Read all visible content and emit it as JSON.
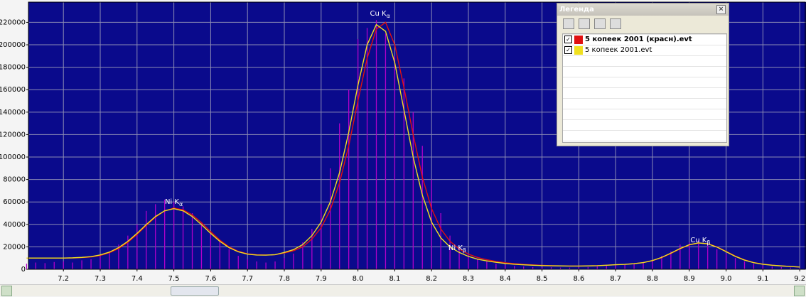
{
  "chart_data": {
    "type": "line",
    "legend_title": "Легенда",
    "xlim": [
      7.105,
      9.217
    ],
    "ylim": [
      0,
      238000
    ],
    "grid": true,
    "background": "#0a0a8c",
    "xticks": [
      7.2,
      7.3,
      7.4,
      7.5,
      7.6,
      7.7,
      7.8,
      7.9,
      {
        "value": 8,
        "label": "8.0"
      },
      8.1,
      8.2,
      8.3,
      8.4,
      8.5,
      8.6,
      8.7,
      8.8,
      8.9,
      {
        "value": 9,
        "label": "9.0"
      },
      9.1,
      9.2
    ],
    "yticks": [
      0,
      20000,
      40000,
      60000,
      80000,
      100000,
      120000,
      140000,
      160000,
      180000,
      200000,
      220000
    ],
    "x": [
      7.1,
      7.125,
      7.15,
      7.175,
      7.2,
      7.225,
      7.25,
      7.275,
      7.3,
      7.325,
      7.35,
      7.375,
      7.4,
      7.425,
      7.45,
      7.475,
      7.5,
      7.525,
      7.55,
      7.575,
      7.6,
      7.625,
      7.65,
      7.675,
      7.7,
      7.725,
      7.75,
      7.775,
      7.8,
      7.825,
      7.85,
      7.875,
      7.9,
      7.925,
      7.95,
      7.975,
      8.0,
      8.025,
      8.05,
      8.075,
      8.1,
      8.125,
      8.15,
      8.175,
      8.2,
      8.225,
      8.25,
      8.275,
      8.3,
      8.325,
      8.35,
      8.375,
      8.4,
      8.425,
      8.45,
      8.475,
      8.5,
      8.525,
      8.55,
      8.575,
      8.6,
      8.625,
      8.65,
      8.675,
      8.7,
      8.725,
      8.75,
      8.775,
      8.8,
      8.825,
      8.85,
      8.875,
      8.9,
      8.925,
      8.95,
      8.975,
      9.0,
      9.025,
      9.05,
      9.075,
      9.1,
      9.125,
      9.15,
      9.175,
      9.2
    ],
    "series": [
      {
        "color": "#b000c8",
        "mark": "stick",
        "values": [
          5000,
          6000,
          5500,
          6500,
          7000,
          6000,
          8000,
          9000,
          12000,
          16000,
          22000,
          30000,
          40000,
          52000,
          58000,
          62000,
          60000,
          56000,
          50000,
          42000,
          34000,
          26000,
          18000,
          12000,
          9000,
          7000,
          6000,
          7000,
          10000,
          14000,
          24000,
          36000,
          58000,
          90000,
          130000,
          160000,
          205000,
          215000,
          222000,
          210000,
          190000,
          170000,
          140000,
          110000,
          80000,
          50000,
          30000,
          20000,
          14000,
          9000,
          7000,
          5000,
          4000,
          3000,
          2500,
          2000,
          2000,
          1800,
          1500,
          1500,
          1800,
          2000,
          2500,
          3000,
          3500,
          4000,
          5000,
          6500,
          8000,
          12000,
          16000,
          22000,
          24000,
          26000,
          22000,
          18000,
          14000,
          10000,
          7000,
          5000,
          3500,
          2500,
          2000,
          1500,
          1000
        ]
      },
      {
        "name": "5 копеек 2001 (красн).evt",
        "color": "#e01010",
        "bold": true,
        "values": [
          10000,
          10000,
          10000,
          10000,
          10000,
          10100,
          10400,
          11000,
          12300,
          14700,
          18500,
          24000,
          31000,
          39000,
          46500,
          52000,
          54500,
          53000,
          48500,
          41500,
          33500,
          26000,
          20000,
          16000,
          13800,
          12900,
          12700,
          13000,
          14500,
          16500,
          20000,
          27000,
          37000,
          53000,
          77000,
          110000,
          150000,
          188000,
          214000,
          220000,
          200000,
          162000,
          120000,
          82000,
          54000,
          36000,
          25000,
          18000,
          13500,
          10500,
          8500,
          7000,
          5800,
          5000,
          4400,
          3900,
          3500,
          3200,
          3000,
          2900,
          2900,
          3000,
          3200,
          3600,
          4100,
          4400,
          5000,
          6000,
          7700,
          10400,
          14100,
          18200,
          21700,
          23400,
          22800,
          20000,
          16000,
          11800,
          8400,
          6000,
          4600,
          3700,
          3000,
          2500,
          2000
        ]
      },
      {
        "name": "5 копеек 2001.evt",
        "color": "#f0e020",
        "bold": false,
        "values": [
          10000,
          10000,
          10000,
          10000,
          10000,
          10200,
          10600,
          11300,
          12800,
          15300,
          19300,
          24900,
          32000,
          39800,
          47000,
          52100,
          54000,
          52100,
          47000,
          39800,
          32000,
          24900,
          19300,
          15600,
          13500,
          12700,
          12600,
          13000,
          15000,
          17500,
          22000,
          30000,
          42000,
          60000,
          86000,
          122000,
          164000,
          200000,
          218000,
          212000,
          184000,
          142000,
          100000,
          66000,
          42000,
          28000,
          20000,
          15000,
          11500,
          9000,
          7500,
          6200,
          5200,
          4500,
          4000,
          3600,
          3300,
          3100,
          3000,
          2900,
          2900,
          3000,
          3200,
          3600,
          4100,
          4400,
          5000,
          6000,
          7800,
          10600,
          14400,
          18500,
          21900,
          23500,
          22700,
          19800,
          15700,
          11500,
          8200,
          5900,
          4500,
          3600,
          3000,
          2500,
          2000
        ]
      }
    ],
    "annotations": [
      {
        "text": "Cu K",
        "sub": "α",
        "x": 8.06,
        "y": 228000
      },
      {
        "text": "Ni K",
        "sub": "α",
        "x": 7.5,
        "y": 60000
      },
      {
        "text": "Ni K",
        "sub": "β",
        "x": 8.27,
        "y": 19000
      },
      {
        "text": "Cu K",
        "sub": "β",
        "x": 8.93,
        "y": 26000
      }
    ]
  }
}
